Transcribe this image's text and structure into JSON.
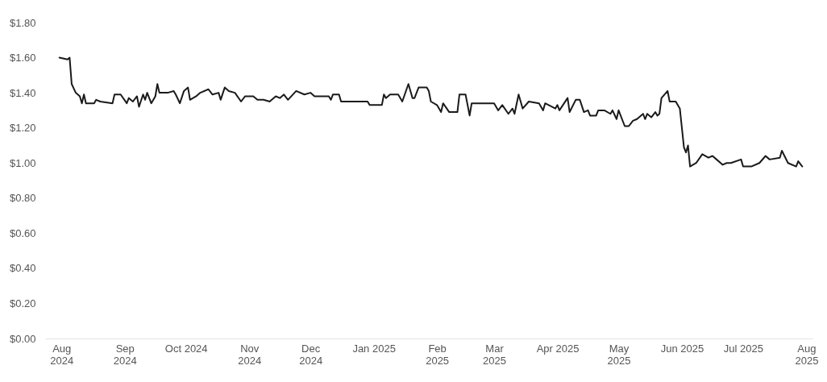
{
  "chart_data": {
    "type": "line",
    "color": "#1a1a1a",
    "x": [
      "2024-07-31",
      "2024-08-04",
      "2024-08-05",
      "2024-08-06",
      "2024-08-08",
      "2024-08-10",
      "2024-08-11",
      "2024-08-12",
      "2024-08-13",
      "2024-08-17",
      "2024-08-18",
      "2024-08-20",
      "2024-08-26",
      "2024-08-27",
      "2024-08-30",
      "2024-09-02",
      "2024-09-03",
      "2024-09-05",
      "2024-09-07",
      "2024-09-08",
      "2024-09-10",
      "2024-09-11",
      "2024-09-12",
      "2024-09-14",
      "2024-09-16",
      "2024-09-17",
      "2024-09-18",
      "2024-09-22",
      "2024-09-25",
      "2024-09-26",
      "2024-09-28",
      "2024-09-30",
      "2024-10-02",
      "2024-10-03",
      "2024-10-06",
      "2024-10-08",
      "2024-10-12",
      "2024-10-14",
      "2024-10-17",
      "2024-10-18",
      "2024-10-20",
      "2024-10-22",
      "2024-10-25",
      "2024-10-28",
      "2024-10-30",
      "2024-11-03",
      "2024-11-05",
      "2024-11-08",
      "2024-11-11",
      "2024-11-14",
      "2024-11-16",
      "2024-11-18",
      "2024-11-20",
      "2024-11-24",
      "2024-11-28",
      "2024-12-01",
      "2024-12-03",
      "2024-12-10",
      "2024-12-11",
      "2024-12-12",
      "2024-12-15",
      "2024-12-16",
      "2024-12-29",
      "2024-12-30",
      "2025-01-05",
      "2025-01-06",
      "2025-01-07",
      "2025-01-09",
      "2025-01-13",
      "2025-01-15",
      "2025-01-18",
      "2025-01-20",
      "2025-01-21",
      "2025-01-23",
      "2025-01-27",
      "2025-01-28",
      "2025-01-29",
      "2025-02-01",
      "2025-02-03",
      "2025-02-04",
      "2025-02-07",
      "2025-02-11",
      "2025-02-12",
      "2025-02-15",
      "2025-02-17",
      "2025-02-18",
      "2025-03-01",
      "2025-03-03",
      "2025-03-05",
      "2025-03-08",
      "2025-03-10",
      "2025-03-11",
      "2025-03-13",
      "2025-03-15",
      "2025-03-18",
      "2025-03-23",
      "2025-03-25",
      "2025-03-26",
      "2025-03-31",
      "2025-04-01",
      "2025-04-02",
      "2025-04-06",
      "2025-04-07",
      "2025-04-10",
      "2025-04-12",
      "2025-04-14",
      "2025-04-16",
      "2025-04-17",
      "2025-04-20",
      "2025-04-21",
      "2025-04-24",
      "2025-04-27",
      "2025-04-28",
      "2025-04-30",
      "2025-05-01",
      "2025-05-04",
      "2025-05-06",
      "2025-05-08",
      "2025-05-10",
      "2025-05-13",
      "2025-05-14",
      "2025-05-15",
      "2025-05-17",
      "2025-05-19",
      "2025-05-20",
      "2025-05-21",
      "2025-05-22",
      "2025-05-25",
      "2025-05-26",
      "2025-05-29",
      "2025-05-31",
      "2025-06-02",
      "2025-06-03",
      "2025-06-04",
      "2025-06-05",
      "2025-06-08",
      "2025-06-11",
      "2025-06-14",
      "2025-06-16",
      "2025-06-18",
      "2025-06-21",
      "2025-06-23",
      "2025-06-25",
      "2025-06-30",
      "2025-07-01",
      "2025-07-05",
      "2025-07-09",
      "2025-07-12",
      "2025-07-14",
      "2025-07-19",
      "2025-07-20",
      "2025-07-23",
      "2025-07-27",
      "2025-07-28",
      "2025-07-30"
    ],
    "values": [
      1.6,
      1.59,
      1.6,
      1.45,
      1.4,
      1.38,
      1.34,
      1.39,
      1.34,
      1.34,
      1.36,
      1.35,
      1.34,
      1.39,
      1.39,
      1.34,
      1.37,
      1.35,
      1.38,
      1.32,
      1.39,
      1.36,
      1.4,
      1.34,
      1.38,
      1.45,
      1.4,
      1.4,
      1.41,
      1.39,
      1.34,
      1.41,
      1.43,
      1.36,
      1.38,
      1.4,
      1.42,
      1.39,
      1.4,
      1.36,
      1.43,
      1.41,
      1.4,
      1.35,
      1.38,
      1.38,
      1.36,
      1.36,
      1.35,
      1.38,
      1.37,
      1.39,
      1.36,
      1.41,
      1.39,
      1.4,
      1.38,
      1.38,
      1.36,
      1.39,
      1.39,
      1.35,
      1.35,
      1.33,
      1.33,
      1.39,
      1.37,
      1.39,
      1.39,
      1.35,
      1.45,
      1.37,
      1.37,
      1.43,
      1.43,
      1.41,
      1.35,
      1.33,
      1.29,
      1.34,
      1.29,
      1.29,
      1.39,
      1.39,
      1.27,
      1.34,
      1.34,
      1.3,
      1.33,
      1.28,
      1.31,
      1.28,
      1.39,
      1.31,
      1.35,
      1.34,
      1.3,
      1.34,
      1.31,
      1.33,
      1.3,
      1.37,
      1.29,
      1.36,
      1.36,
      1.29,
      1.3,
      1.27,
      1.27,
      1.3,
      1.3,
      1.28,
      1.3,
      1.25,
      1.3,
      1.21,
      1.21,
      1.24,
      1.25,
      1.28,
      1.25,
      1.28,
      1.26,
      1.29,
      1.27,
      1.28,
      1.37,
      1.41,
      1.35,
      1.35,
      1.31,
      1.09,
      1.06,
      1.1,
      0.98,
      1.0,
      1.05,
      1.03,
      1.04,
      1.02,
      0.99,
      1.0,
      1.0,
      1.02,
      0.98,
      0.98,
      1.0,
      1.04,
      1.02,
      1.03,
      1.07,
      1.0,
      0.98,
      1.01,
      0.98
    ],
    "xlim": [
      "2024-07-24",
      "2025-08-04"
    ],
    "xticks": [
      {
        "value": "2024-08-01",
        "label": "Aug\n2024"
      },
      {
        "value": "2024-09-01",
        "label": "Sep\n2024"
      },
      {
        "value": "2024-10-01",
        "label": "Oct 2024"
      },
      {
        "value": "2024-11-01",
        "label": "Nov\n2024"
      },
      {
        "value": "2024-12-01",
        "label": "Dec\n2024"
      },
      {
        "value": "2025-01-01",
        "label": "Jan 2025"
      },
      {
        "value": "2025-02-01",
        "label": "Feb\n2025"
      },
      {
        "value": "2025-03-01",
        "label": "Mar\n2025"
      },
      {
        "value": "2025-04-01",
        "label": "Apr 2025"
      },
      {
        "value": "2025-05-01",
        "label": "May\n2025"
      },
      {
        "value": "2025-06-01",
        "label": "Jun 2025"
      },
      {
        "value": "2025-07-01",
        "label": "Jul 2025"
      },
      {
        "value": "2025-08-01",
        "label": "Aug\n2025"
      }
    ],
    "ylim": [
      0,
      1.8
    ],
    "yticks": [
      {
        "value": 0,
        "label": "$0.00"
      },
      {
        "value": 0.2,
        "label": "$0.20"
      },
      {
        "value": 0.4,
        "label": "$0.40"
      },
      {
        "value": 0.6,
        "label": "$0.60"
      },
      {
        "value": 0.8,
        "label": "$0.80"
      },
      {
        "value": 1.0,
        "label": "$1.00"
      },
      {
        "value": 1.2,
        "label": "$1.20"
      },
      {
        "value": 1.4,
        "label": "$1.40"
      },
      {
        "value": 1.6,
        "label": "$1.60"
      },
      {
        "value": 1.8,
        "label": "$1.80"
      }
    ]
  }
}
